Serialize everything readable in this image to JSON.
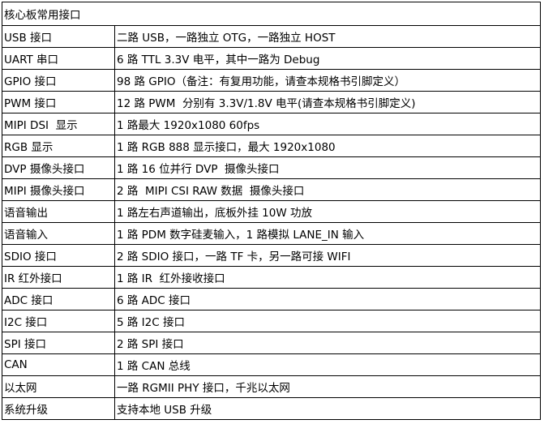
{
  "table": {
    "title": "核心板常用接口",
    "rows": [
      [
        "USB 接口",
        "二路 USB，一路独立 OTG，一路独立 HOST"
      ],
      [
        "UART 串口",
        "6 路 TTL 3.3V 电平，其中一路为 Debug"
      ],
      [
        "GPIO 接口",
        "98 路 GPIO（备注：有复用功能，请查本规格书引脚定义）"
      ],
      [
        "PWM 接口",
        "12 路 PWM  分别有 3.3V/1.8V 电平(请查本规格书引脚定义)"
      ],
      [
        "MIPI DSI  显示",
        "1 路最大 1920x1080 60fps"
      ],
      [
        "RGB 显示",
        "1 路 RGB 888 显示接口，最大 1920x1080"
      ],
      [
        "DVP 摄像头接口",
        "1 路 16 位并行 DVP  摄像头接口"
      ],
      [
        "MIPI 摄像头接口",
        "2 路  MIPI CSI RAW 数据  摄像头接口"
      ],
      [
        "语音输出",
        "1 路左右声道输出，底板外挂 10W 功放"
      ],
      [
        "语音输入",
        "1 路 PDM 数字硅麦输入，1 路模拟 LANE_IN 输入"
      ],
      [
        "SDIO 接口",
        "2 路 SDIO 接口，一路 TF 卡，另一路可接 WIFI"
      ],
      [
        "IR 红外接口",
        "1 路 IR  红外接收接口"
      ],
      [
        "ADC 接口",
        "6 路 ADC 接口"
      ],
      [
        "I2C 接口",
        "5 路 I2C 接口"
      ],
      [
        "SPI 接口",
        "2 路 SPI 接口"
      ],
      [
        "CAN",
        "1 路 CAN 总线"
      ],
      [
        "以太网",
        "一路 RGMII PHY 接口，千兆以太网"
      ],
      [
        "系统升级",
        "支持本地 USB 升级"
      ]
    ]
  }
}
